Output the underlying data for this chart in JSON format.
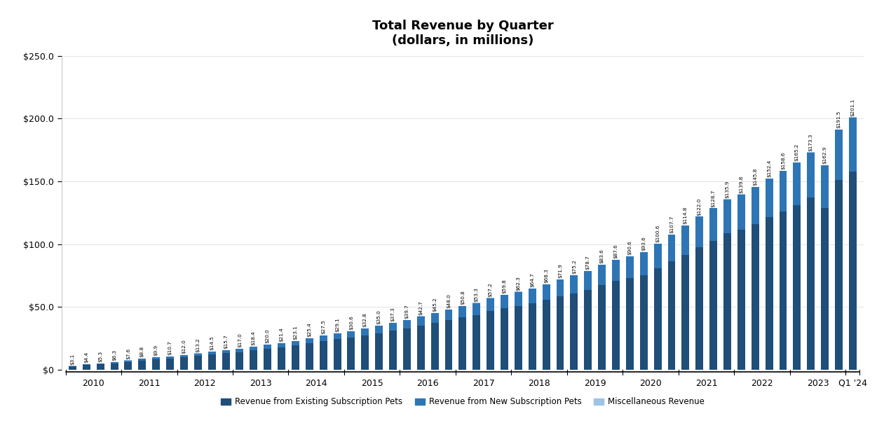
{
  "title": "Total Revenue by Quarter\n(dollars, in millions)",
  "totals": [
    3.1,
    4.4,
    5.3,
    6.3,
    7.6,
    8.8,
    9.9,
    10.7,
    12.0,
    13.2,
    14.5,
    15.7,
    17.0,
    18.4,
    20.0,
    21.4,
    23.1,
    25.4,
    27.5,
    29.1,
    30.6,
    32.8,
    35.0,
    37.3,
    39.7,
    42.7,
    45.2,
    48.0,
    50.8,
    53.3,
    57.2,
    59.8,
    62.3,
    64.7,
    68.3,
    71.9,
    75.2,
    78.7,
    83.6,
    87.6,
    90.6,
    93.6,
    100.6,
    107.7,
    114.8,
    122.0,
    128.7,
    135.9,
    139.8,
    145.8,
    152.4,
    158.6,
    165.2,
    173.3,
    162.9,
    191.5,
    201.1
  ],
  "existing_sub": [
    2.6,
    3.7,
    4.5,
    5.3,
    6.4,
    7.4,
    8.3,
    9.0,
    10.1,
    11.1,
    12.2,
    13.2,
    14.2,
    15.4,
    16.8,
    18.0,
    19.4,
    21.3,
    23.0,
    24.4,
    25.6,
    27.4,
    29.2,
    31.0,
    32.8,
    35.2,
    37.2,
    39.5,
    41.7,
    43.7,
    47.0,
    49.0,
    50.8,
    52.8,
    55.7,
    58.4,
    60.9,
    63.7,
    67.6,
    70.8,
    73.0,
    75.4,
    80.9,
    86.3,
    91.7,
    97.6,
    102.9,
    108.7,
    111.6,
    116.3,
    121.4,
    126.1,
    131.2,
    137.5,
    128.7,
    151.3,
    157.7
  ],
  "new_sub": [
    0.4,
    0.6,
    0.7,
    0.9,
    1.1,
    1.3,
    1.5,
    1.6,
    1.8,
    2.0,
    2.2,
    2.4,
    2.7,
    2.9,
    3.1,
    3.3,
    3.6,
    4.0,
    4.4,
    4.6,
    4.9,
    5.3,
    5.7,
    6.2,
    6.8,
    7.4,
    7.9,
    8.4,
    9.0,
    9.5,
    10.1,
    10.7,
    11.4,
    11.8,
    12.5,
    13.4,
    14.2,
    14.9,
    15.9,
    16.7,
    17.5,
    18.1,
    19.6,
    21.3,
    23.0,
    24.3,
    25.7,
    27.1,
    28.1,
    29.4,
    30.9,
    32.4,
    33.9,
    35.7,
    34.1,
    40.1,
    43.3
  ],
  "misc": [
    0.1,
    0.1,
    0.1,
    0.1,
    0.1,
    0.1,
    0.1,
    0.1,
    0.1,
    0.1,
    0.1,
    0.1,
    0.1,
    0.1,
    0.1,
    0.1,
    0.1,
    0.1,
    0.1,
    0.1,
    0.1,
    0.1,
    0.1,
    0.1,
    0.1,
    0.1,
    0.1,
    0.1,
    0.1,
    0.1,
    0.1,
    0.1,
    0.1,
    0.1,
    0.1,
    0.1,
    0.1,
    0.1,
    0.1,
    0.1,
    0.1,
    0.1,
    0.1,
    0.1,
    0.1,
    0.1,
    0.1,
    0.1,
    0.1,
    0.1,
    0.1,
    0.1,
    0.1,
    0.1,
    0.1,
    0.1,
    0.1
  ],
  "color_existing": "#1F4E79",
  "color_new": "#2E75B6",
  "color_misc": "#9DC3E6",
  "background_color": "#FFFFFF",
  "legend_labels": [
    "Revenue from Existing Subscription Pets",
    "Revenue from New Subscription Pets",
    "Miscellaneous Revenue"
  ],
  "years": [
    2010,
    2011,
    2012,
    2013,
    2014,
    2015,
    2016,
    2017,
    2018,
    2019,
    2020,
    2021,
    2022,
    2023
  ],
  "last_label": "Q1 '24"
}
